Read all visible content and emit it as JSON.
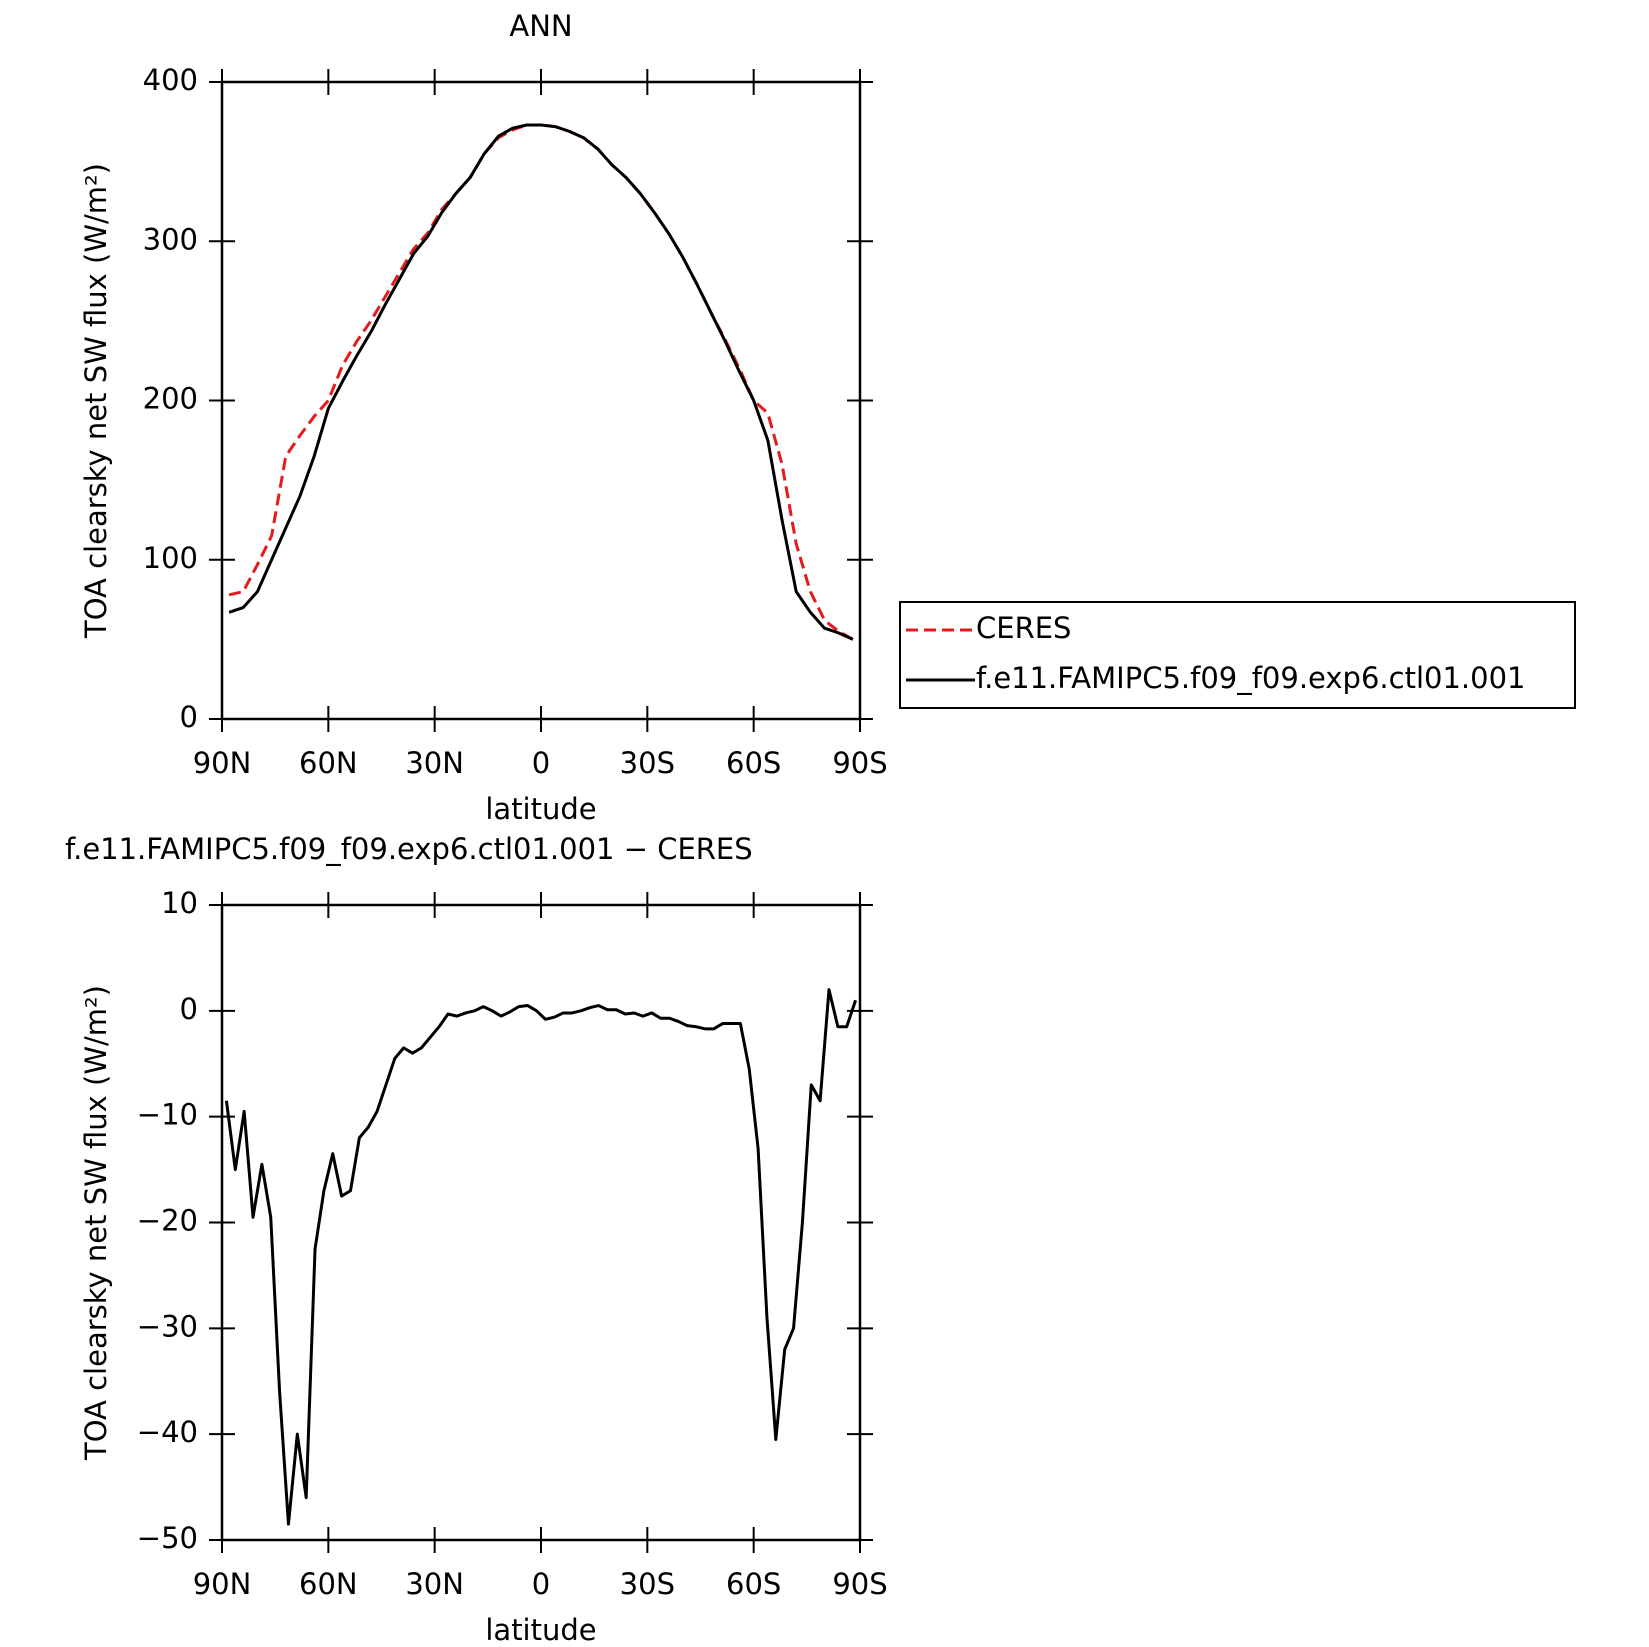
{
  "chart_data": [
    {
      "type": "line",
      "title": "ANN",
      "xlabel": "latitude",
      "ylabel": "TOA clearsky net SW flux (W/m²)",
      "x": [
        88,
        84,
        80,
        76,
        72,
        68,
        64,
        60,
        56,
        52,
        48,
        44,
        40,
        36,
        32,
        28,
        24,
        20,
        16,
        12,
        8,
        4,
        0,
        -4,
        -8,
        -12,
        -16,
        -20,
        -24,
        -28,
        -32,
        -36,
        -40,
        -44,
        -48,
        -52,
        -56,
        -60,
        -64,
        -68,
        -72,
        -76,
        -80,
        -84,
        -88
      ],
      "series": [
        {
          "name": "CERES",
          "color": "#e41a1c",
          "dash": true,
          "values": [
            78,
            80,
            97,
            115,
            165,
            178,
            190,
            200,
            222,
            237,
            250,
            265,
            280,
            295,
            305,
            320,
            330,
            340,
            355,
            365,
            370,
            373,
            373,
            372,
            369,
            365,
            358,
            348,
            340,
            330,
            318,
            305,
            290,
            273,
            255,
            238,
            220,
            200,
            192,
            160,
            110,
            80,
            62,
            55,
            50
          ]
        },
        {
          "name": "f.e11.FAMIPC5.f09_f09.exp6.ctl01.001",
          "color": "#000000",
          "dash": false,
          "values": [
            67,
            70,
            80,
            100,
            120,
            140,
            165,
            195,
            212,
            228,
            243,
            260,
            276,
            292,
            303,
            318,
            330,
            340,
            355,
            366,
            371,
            373,
            373,
            372,
            369,
            365,
            358,
            348,
            340,
            330,
            318,
            305,
            290,
            273,
            255,
            237,
            218,
            200,
            175,
            125,
            80,
            67,
            57,
            54,
            50
          ]
        }
      ],
      "xlim": [
        90,
        -90
      ],
      "xticks": [
        {
          "value": 90,
          "label": "90N"
        },
        {
          "value": 60,
          "label": "60N"
        },
        {
          "value": 30,
          "label": "30N"
        },
        0,
        {
          "value": -30,
          "label": "30S"
        },
        {
          "value": -60,
          "label": "60S"
        },
        {
          "value": -90,
          "label": "90S"
        }
      ],
      "ylim": [
        0,
        400
      ],
      "yticks": [
        0,
        100,
        200,
        300,
        400
      ],
      "legend": "right"
    },
    {
      "type": "line",
      "title": "f.e11.FAMIPC5.f09_f09.exp6.ctl01.001 − CERES",
      "xlabel": "latitude",
      "ylabel": "TOA clearsky net SW flux (W/m²)",
      "x": [
        88.75,
        86.25,
        83.75,
        81.25,
        78.75,
        76.25,
        73.75,
        71.25,
        68.75,
        66.25,
        63.75,
        61.25,
        58.75,
        56.25,
        53.75,
        51.25,
        48.75,
        46.25,
        43.75,
        41.25,
        38.75,
        36.25,
        33.75,
        31.25,
        28.75,
        26.25,
        23.75,
        21.25,
        18.75,
        16.25,
        13.75,
        11.25,
        8.75,
        6.25,
        3.75,
        1.25,
        -1.25,
        -3.75,
        -6.25,
        -8.75,
        -11.25,
        -13.75,
        -16.25,
        -18.75,
        -21.25,
        -23.75,
        -26.25,
        -28.75,
        -31.25,
        -33.75,
        -36.25,
        -38.75,
        -41.25,
        -43.75,
        -46.25,
        -48.75,
        -51.25,
        -53.75,
        -56.25,
        -58.75,
        -61.25,
        -63.75,
        -66.25,
        -68.75,
        -71.25,
        -73.75,
        -76.25,
        -78.75,
        -81.25,
        -83.75,
        -86.25,
        -88.75
      ],
      "series": [
        {
          "color": "#000000",
          "dash": false,
          "values": [
            -8.5,
            -15,
            -9.5,
            -19.5,
            -14.5,
            -19.5,
            -36,
            -48.5,
            -40,
            -46,
            -22.5,
            -17,
            -13.5,
            -17.5,
            -17,
            -12,
            -11,
            -9.5,
            -7,
            -4.5,
            -3.5,
            -4,
            -3.5,
            -2.5,
            -1.5,
            -0.3,
            -0.5,
            -0.2,
            0,
            0.4,
            0,
            -0.5,
            -0.1,
            0.4,
            0.5,
            0,
            -0.8,
            -0.6,
            -0.2,
            -0.2,
            0,
            0.3,
            0.5,
            0.1,
            0.1,
            -0.3,
            -0.2,
            -0.5,
            -0.2,
            -0.7,
            -0.7,
            -1,
            -1.4,
            -1.5,
            -1.7,
            -1.7,
            -1.2,
            -1.2,
            -1.2,
            -5.5,
            -13,
            -29,
            -40.5,
            -32,
            -30,
            -20,
            -7,
            -8.5,
            2,
            -1.5,
            -1.5,
            1
          ]
        }
      ],
      "xlim": [
        90,
        -90
      ],
      "xticks": [
        {
          "value": 90,
          "label": "90N"
        },
        {
          "value": 60,
          "label": "60N"
        },
        {
          "value": 30,
          "label": "30N"
        },
        0,
        {
          "value": -30,
          "label": "30S"
        },
        {
          "value": -60,
          "label": "60S"
        },
        {
          "value": -90,
          "label": "90S"
        }
      ],
      "ylim": [
        -50,
        10
      ],
      "yticks": [
        {
          "value": -50,
          "label": "−50"
        },
        {
          "value": -40,
          "label": "−40"
        },
        {
          "value": -30,
          "label": "−30"
        },
        {
          "value": -20,
          "label": "−20"
        },
        {
          "value": -10,
          "label": "−10"
        },
        0,
        10
      ]
    }
  ]
}
